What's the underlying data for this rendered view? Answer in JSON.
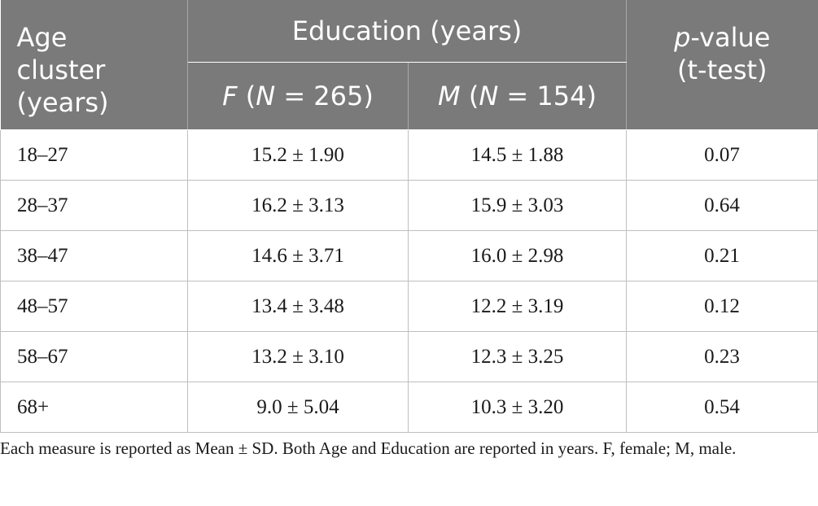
{
  "table": {
    "headers": {
      "age_cluster": [
        "Age",
        "cluster",
        "(years)"
      ],
      "education": "Education (years)",
      "p_value": {
        "italic": "p",
        "rest": "-value",
        "line2": "(t-test)"
      },
      "female": {
        "letter": "F",
        "open": " (",
        "n_letter": "N",
        "close": " = 265)"
      },
      "male": {
        "letter": "M",
        "open": " (",
        "n_letter": "N",
        "close": " = 154)"
      }
    },
    "rows": [
      {
        "age": "18–27",
        "female": "15.2 ± 1.90",
        "male": "14.5 ± 1.88",
        "p": "0.07"
      },
      {
        "age": "28–37",
        "female": "16.2 ± 3.13",
        "male": "15.9 ± 3.03",
        "p": "0.64"
      },
      {
        "age": "38–47",
        "female": "14.6 ± 3.71",
        "male": "16.0 ± 2.98",
        "p": "0.21"
      },
      {
        "age": "48–57",
        "female": "13.4 ± 3.48",
        "male": "12.2 ± 3.19",
        "p": "0.12"
      },
      {
        "age": "58–67",
        "female": "13.2 ± 3.10",
        "male": "12.3 ± 3.25",
        "p": "0.23"
      },
      {
        "age": "68+",
        "female": "9.0 ± 5.04",
        "male": "10.3 ± 3.20",
        "p": "0.54"
      }
    ]
  },
  "footnote": "Each measure is reported as Mean ± SD. Both Age and Education are reported in years. F, female; M, male.",
  "colors": {
    "header_bg": "#7a7a7a",
    "header_text": "#ffffff",
    "grid": "#bfbfbf"
  }
}
